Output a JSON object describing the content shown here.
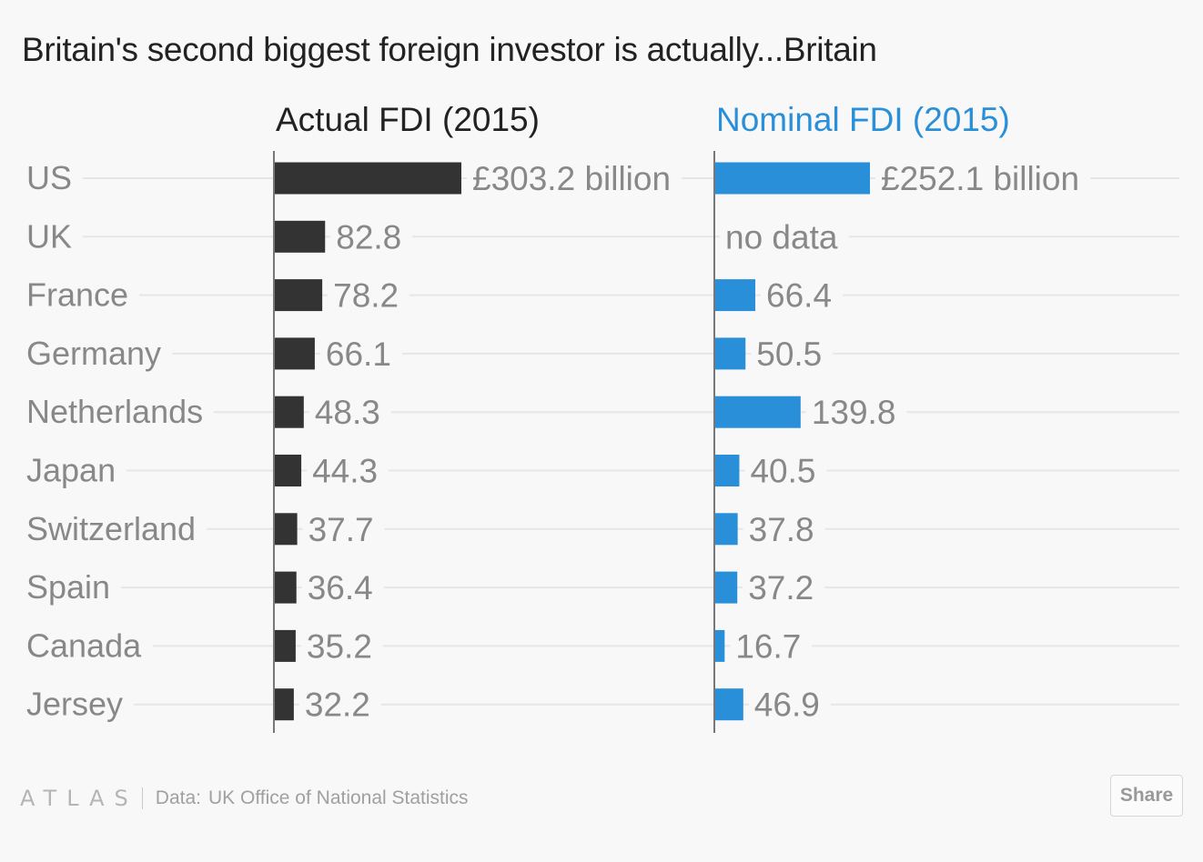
{
  "title": "Britain's second biggest foreign investor is actually...Britain",
  "chart_data": {
    "type": "bar",
    "orientation": "horizontal",
    "categories": [
      "US",
      "UK",
      "France",
      "Germany",
      "Netherlands",
      "Japan",
      "Switzerland",
      "Spain",
      "Canada",
      "Jersey"
    ],
    "series": [
      {
        "name": "Actual FDI (2015)",
        "color": "#333333",
        "values": [
          303.2,
          82.8,
          78.2,
          66.1,
          48.3,
          44.3,
          37.7,
          36.4,
          35.2,
          32.2
        ],
        "labels": [
          "£303.2 billion",
          "82.8",
          "78.2",
          "66.1",
          "48.3",
          "44.3",
          "37.7",
          "36.4",
          "35.2",
          "32.2"
        ]
      },
      {
        "name": "Nominal FDI (2015)",
        "color": "#2a8fd9",
        "values": [
          252.1,
          null,
          66.4,
          50.5,
          139.8,
          40.5,
          37.8,
          37.2,
          16.7,
          46.9
        ],
        "labels": [
          "£252.1 billion",
          "no data",
          "66.4",
          "50.5",
          "139.8",
          "40.5",
          "37.8",
          "37.2",
          "16.7",
          "46.9"
        ]
      }
    ],
    "units": "£ billion",
    "xlim": [
      0,
      303.2
    ]
  },
  "footer": {
    "logo": "ATLAS",
    "source_label": "Data:",
    "source_value": "UK Office of National Statistics",
    "share_label": "Share"
  },
  "colors": {
    "background": "#f8f8f8",
    "category_text": "#888888",
    "value_text": "#888888",
    "gridline": "#e6e6e6",
    "axis": "#777777"
  }
}
